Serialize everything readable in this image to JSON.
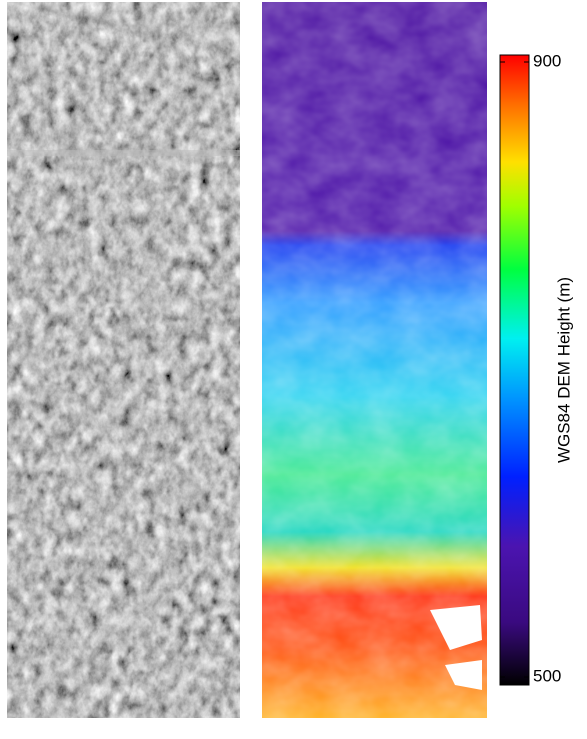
{
  "chart_data": {
    "type": "colorbar",
    "ylabel": "WGS84 DEM Height (m)",
    "ylim": [
      500,
      900
    ],
    "yticks": [
      500,
      900
    ]
  }
}
